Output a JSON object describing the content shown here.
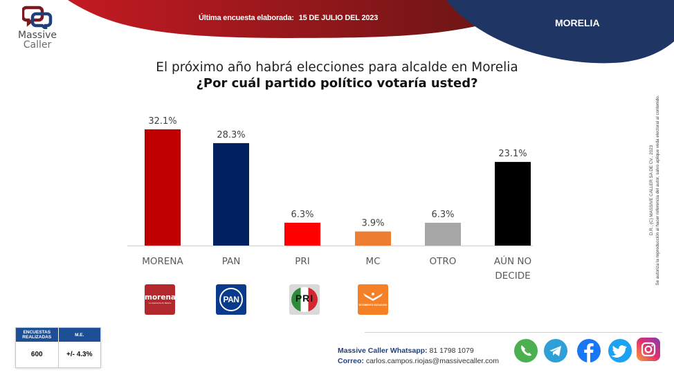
{
  "brand": {
    "name_line1": "Massive",
    "name_line2": "Caller",
    "colors": {
      "red": "#b5161b",
      "dark_red": "#6e1515",
      "navy": "#1f3563"
    }
  },
  "header": {
    "survey_label": "Última encuesta elaborada:",
    "survey_date": "15 DE JULIO DEL 2023",
    "city": "MORELIA"
  },
  "question": {
    "line1": "El próximo año habrá elecciones para alcalde en Morelia",
    "line2": "¿Por cuál partido político votaría usted?"
  },
  "chart_data": {
    "type": "bar",
    "title": "El próximo año habrá elecciones para alcalde en Morelia ¿Por cuál partido político votaría usted?",
    "categories": [
      "MORENA",
      "PAN",
      "PRI",
      "MC",
      "OTRO",
      "AÚN NO DECIDE"
    ],
    "category_lines": [
      [
        "MORENA"
      ],
      [
        "PAN"
      ],
      [
        "PRI"
      ],
      [
        "MC"
      ],
      [
        "OTRO"
      ],
      [
        "AÚN NO",
        "DECIDE"
      ]
    ],
    "values": [
      32.1,
      28.3,
      6.3,
      3.9,
      6.3,
      23.1
    ],
    "value_labels": [
      "32.1%",
      "28.3%",
      "6.3%",
      "3.9%",
      "6.3%",
      "23.1%"
    ],
    "colors": [
      "#c00000",
      "#002060",
      "#ff0000",
      "#ed7d31",
      "#a6a6a6",
      "#000000"
    ],
    "unit": "%",
    "xlabel": "",
    "ylabel": "",
    "ylim": [
      0,
      32.1
    ],
    "grid": false,
    "legend": "none"
  },
  "party_logos": [
    {
      "party": "MORENA",
      "text": "morena",
      "subtext": "La esperanza de México",
      "color": "#b3282d"
    },
    {
      "party": "PAN",
      "text": "PAN",
      "color": "#0a3a8c"
    },
    {
      "party": "PRI",
      "text": "PRI",
      "colors": [
        "#2e8b3a",
        "#ffffff",
        "#d22630"
      ]
    },
    {
      "party": "MC",
      "text": "MOVIMIENTO CIUDADANO",
      "color": "#f58025"
    }
  ],
  "copyright": {
    "line1": "D.R., (C) MASSIVE CALLER SA DE CV., 2023",
    "line2": "Se autoriza la reproducción al hacer referencia del autor, salvo aplique veda electoral al contenido."
  },
  "stats": {
    "surveys_header": "ENCUESTAS REALIZADAS",
    "me_header": "M.E.",
    "surveys_value": "600",
    "me_value": "+/- 4.3%"
  },
  "contact": {
    "whatsapp_label": "Massive Caller Whatsapp:",
    "whatsapp_value": "81 1798 1079",
    "email_label": "Correo:",
    "email_value": "carlos.campos.riojas@massivecaller.com"
  },
  "social": [
    {
      "name": "whatsapp",
      "icon": "whatsapp-icon",
      "color": "#4caf50"
    },
    {
      "name": "telegram",
      "icon": "telegram-icon",
      "color": "#2f9fd8"
    },
    {
      "name": "facebook",
      "icon": "facebook-icon",
      "color": "#1877f2"
    },
    {
      "name": "twitter",
      "icon": "twitter-icon",
      "color": "#1da1f2"
    },
    {
      "name": "instagram",
      "icon": "instagram-icon",
      "color": "#c13584"
    }
  ]
}
